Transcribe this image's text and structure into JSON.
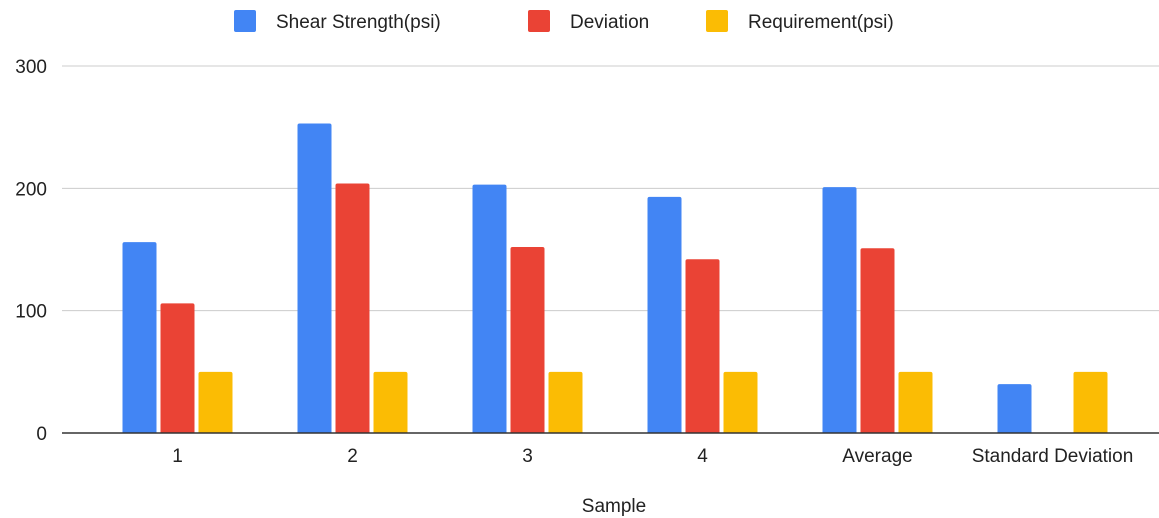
{
  "chart_data": {
    "type": "bar",
    "title": "",
    "xlabel": "Sample",
    "ylabel": "",
    "ylim": [
      0,
      300
    ],
    "yticks": [
      0,
      100,
      200,
      300
    ],
    "grid": true,
    "legend_position": "top-center",
    "categories": [
      "1",
      "2",
      "3",
      "4",
      "Average",
      "Standard Deviation"
    ],
    "series": [
      {
        "name": "Shear Strength(psi)",
        "color": "#4285F4",
        "values": [
          156,
          253,
          203,
          193,
          201,
          40
        ]
      },
      {
        "name": "Deviation",
        "color": "#EA4335",
        "values": [
          106,
          204,
          152,
          142,
          151,
          null
        ]
      },
      {
        "name": "Requirement(psi)",
        "color": "#FBBC04",
        "values": [
          50,
          50,
          50,
          50,
          50,
          50
        ]
      }
    ]
  }
}
